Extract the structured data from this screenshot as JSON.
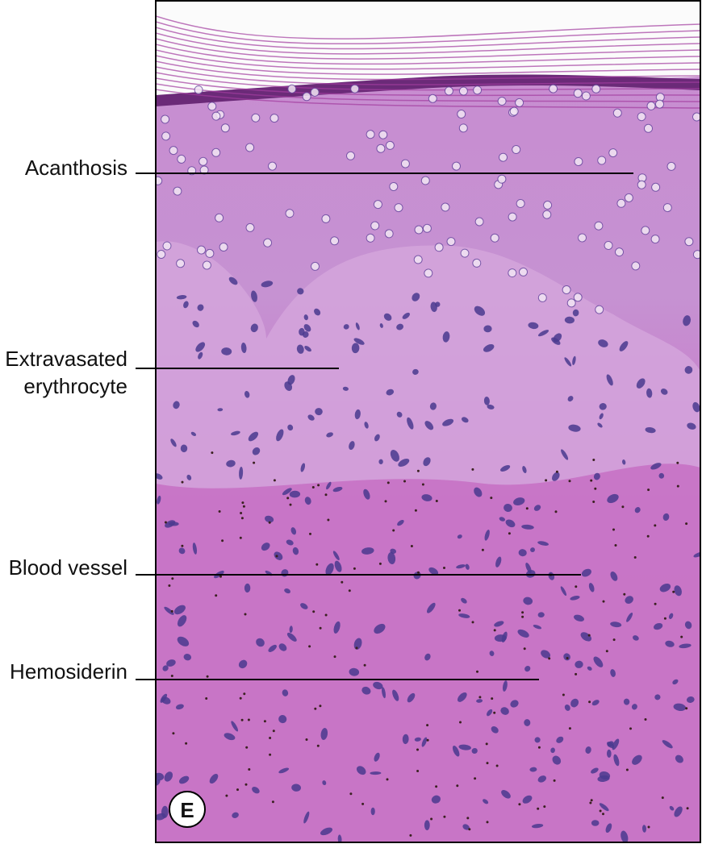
{
  "labels": [
    {
      "lines": [
        "Acanthosis"
      ]
    },
    {
      "lines": [
        "Extravasated",
        "erythrocyte"
      ]
    },
    {
      "lines": [
        "Blood vessel"
      ]
    },
    {
      "lines": [
        "Hemosiderin"
      ]
    }
  ],
  "panel_label": "E"
}
